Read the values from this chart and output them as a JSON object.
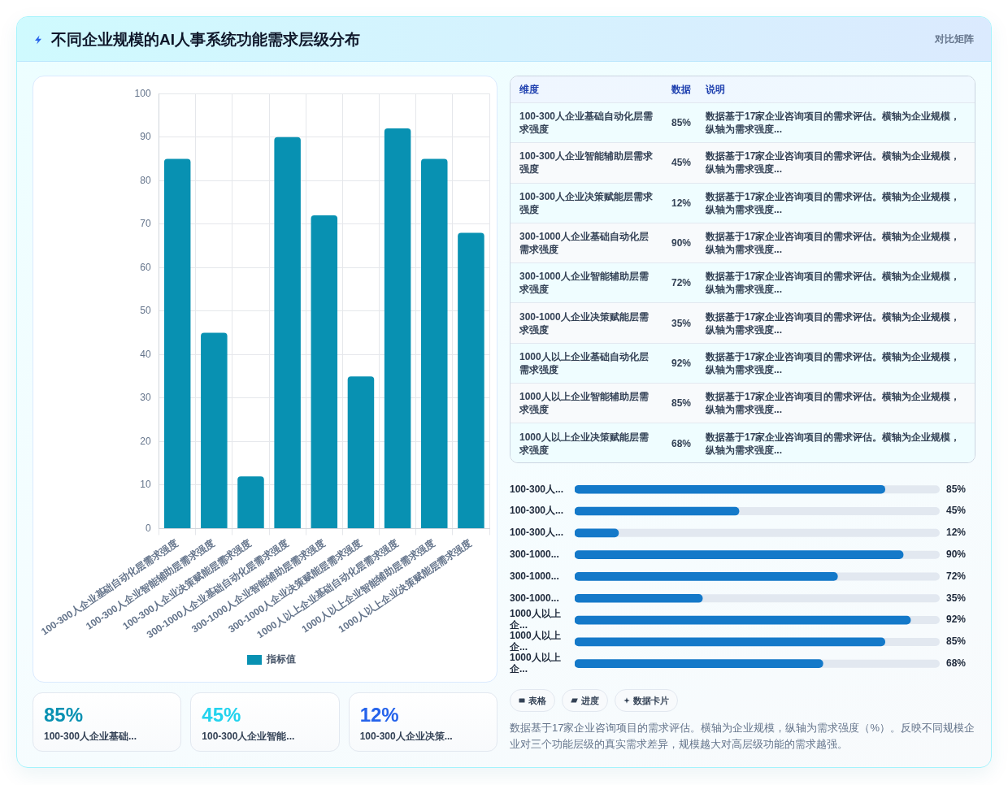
{
  "chart_data": [
    {
      "type": "other",
      "title": "不同企业规模的AI人事系统功能需求层级分布",
      "subtitle": "对比矩阵"
    },
    {
      "type": "bar",
      "categories": [
        "100-300人企业基础自动化层需求强度",
        "100-300人企业智能辅助层需求强度",
        "100-300人企业决策赋能层需求强度",
        "300-1000人企业基础自动化层需求强度",
        "300-1000人企业智能辅助层需求强度",
        "300-1000人企业决策赋能层需求强度",
        "1000人以上企业基础自动化层需求强度",
        "1000人以上企业智能辅助层需求强度",
        "1000人以上企业决策赋能层需求强度"
      ],
      "series": [
        {
          "name": "指标值",
          "color": "#0891b2",
          "values": [
            85,
            45,
            12,
            90,
            72,
            35,
            92,
            85,
            68
          ]
        }
      ],
      "ylim": [
        0,
        100
      ],
      "yticks": [
        0,
        10,
        20,
        30,
        40,
        50,
        60,
        70,
        80,
        90,
        100
      ],
      "grid": true,
      "legend": "bottom",
      "annotations": [
        "数据基于17家企业咨询项目的需求评估。横轴为企业规模，纵轴为需求强度（%）。反映不同规模企业对三个功能层级的真实需求差异，规模越大对高层级功能的需求越强。"
      ]
    },
    {
      "type": "other",
      "annotations": [
        "维度",
        "数据",
        "说明",
        "100-300人企业基础自动化层需求强度",
        "85%",
        "数据基于17家企业咨询项目的需求评估。横轴为企业规模，纵轴为需求强度...",
        "100-300人企业智能辅助层需求强度",
        "45%",
        "数据基于17家企业咨询项目的需求评估。横轴为企业规模，纵轴为需求强度...",
        "100-300人企业决策赋能层需求强度",
        "12%",
        "数据基于17家企业咨询项目的需求评估。横轴为企业规模，纵轴为需求强度...",
        "300-1000人企业基础自动化层需求强度",
        "90%",
        "数据基于17家企业咨询项目的需求评估。横轴为企业规模，纵轴为需求强度...",
        "300-1000人企业智能辅助层需求强度",
        "72%",
        "数据基于17家企业咨询项目的需求评估。横轴为企业规模，纵轴为需求强度...",
        "300-1000人企业决策赋能层需求强度",
        "35%",
        "数据基于17家企业咨询项目的需求评估。横轴为企业规模，纵轴为需求强度...",
        "1000人以上企业基础自动化层需求强度",
        "92%",
        "数据基于17家企业咨询项目的需求评估。横轴为企业规模，纵轴为需求强度...",
        "1000人以上企业智能辅助层需求强度",
        "85%",
        "数据基于17家企业咨询项目的需求评估。横轴为企业规模，纵轴为需求强度...",
        "1000人以上企业决策赋能层需求强度",
        "68%",
        "数据基于17家企业咨询项目的需求评估。横轴为企业规模，纵轴为需求强度..."
      ]
    },
    {
      "type": "bar",
      "orientation": "horizontal",
      "categories": [
        "100-300人...",
        "100-300人...",
        "100-300人...",
        "300-1000...",
        "300-1000...",
        "300-1000...",
        "1000人以上企...",
        "1000人以上企...",
        "1000人以上企..."
      ],
      "values": [
        85,
        45,
        12,
        90,
        72,
        35,
        92,
        85,
        68
      ],
      "value_labels": [
        "85%",
        "45%",
        "12%",
        "90%",
        "72%",
        "35%",
        "92%",
        "85%",
        "68%"
      ],
      "color": "#1479c9",
      "xlim": [
        0,
        100
      ],
      "tick_labels": "y"
    },
    {
      "type": "other",
      "annotations": [
        "85%",
        "100-300人企业基础...",
        "45%",
        "100-300人企业智能...",
        "12%",
        "100-300人企业决策..."
      ]
    },
    {
      "type": "other",
      "annotations": [
        "表格",
        "进度",
        "数据卡片"
      ]
    }
  ]
}
